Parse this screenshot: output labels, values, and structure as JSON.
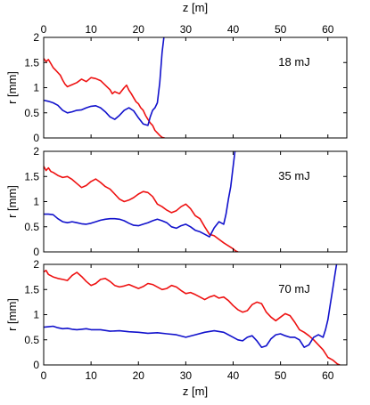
{
  "chart_data": {
    "type": "line",
    "top_xlabel": "z [m]",
    "xlabel": "z [m]",
    "ylabel": "r [mm]",
    "xlim": [
      0,
      64
    ],
    "ylim": [
      0,
      2
    ],
    "xticks": [
      0,
      10,
      20,
      30,
      40,
      50,
      60
    ],
    "yticks": [
      0,
      0.5,
      1,
      1.5,
      2
    ],
    "ytick_labels": [
      "0",
      "0.5",
      "1",
      "1.5",
      "2"
    ],
    "grid": false,
    "colors": {
      "red": "#ee1111",
      "blue": "#1111cc"
    },
    "panels": [
      {
        "label": "18 mJ",
        "series": [
          {
            "color": "red",
            "x": [
              0,
              0.5,
              1,
              1.5,
              2,
              2.5,
              3,
              3.5,
              4,
              4.5,
              5,
              6,
              7,
              8,
              9,
              10,
              11,
              12,
              13,
              14,
              14.5,
              15,
              16,
              17,
              17.5,
              18,
              18.5,
              19,
              19.5,
              20,
              20.5,
              21,
              21.5,
              22,
              22.5,
              23,
              23.5,
              24,
              24.5,
              25,
              25.5
            ],
            "y": [
              1.58,
              1.52,
              1.56,
              1.48,
              1.4,
              1.35,
              1.3,
              1.25,
              1.15,
              1.07,
              1.02,
              1.06,
              1.1,
              1.17,
              1.12,
              1.2,
              1.18,
              1.14,
              1.05,
              0.96,
              0.88,
              0.92,
              0.88,
              1.0,
              1.05,
              0.95,
              0.88,
              0.8,
              0.72,
              0.68,
              0.6,
              0.55,
              0.45,
              0.37,
              0.3,
              0.25,
              0.15,
              0.1,
              0.05,
              0.01,
              0.0
            ]
          },
          {
            "color": "blue",
            "x": [
              0,
              1,
              2,
              3,
              4,
              5,
              6,
              7,
              8,
              9,
              10,
              11,
              12,
              13,
              14,
              15,
              16,
              17,
              18,
              19,
              20,
              21,
              22,
              22.5,
              23,
              23.5,
              24,
              24.5,
              25,
              25.5
            ],
            "y": [
              0.75,
              0.73,
              0.7,
              0.65,
              0.55,
              0.5,
              0.52,
              0.55,
              0.56,
              0.6,
              0.63,
              0.64,
              0.6,
              0.52,
              0.42,
              0.37,
              0.45,
              0.55,
              0.6,
              0.54,
              0.4,
              0.28,
              0.25,
              0.42,
              0.55,
              0.6,
              0.7,
              1.1,
              1.7,
              2.1
            ]
          }
        ]
      },
      {
        "label": "35 mJ",
        "series": [
          {
            "color": "red",
            "x": [
              0,
              0.5,
              1,
              1.5,
              2,
              3,
              4,
              5,
              6,
              7,
              8,
              9,
              10,
              11,
              12,
              13,
              14,
              15,
              16,
              17,
              18,
              19,
              20,
              21,
              22,
              23,
              24,
              25,
              26,
              27,
              28,
              29,
              30,
              31,
              32,
              33,
              34,
              35,
              36,
              37,
              38,
              39,
              40,
              40.5,
              41
            ],
            "y": [
              1.7,
              1.62,
              1.67,
              1.6,
              1.58,
              1.52,
              1.48,
              1.5,
              1.44,
              1.36,
              1.28,
              1.32,
              1.4,
              1.45,
              1.38,
              1.3,
              1.25,
              1.15,
              1.05,
              1.0,
              1.03,
              1.08,
              1.15,
              1.2,
              1.18,
              1.1,
              0.95,
              0.9,
              0.83,
              0.78,
              0.82,
              0.9,
              0.95,
              0.86,
              0.72,
              0.66,
              0.5,
              0.35,
              0.32,
              0.25,
              0.18,
              0.12,
              0.06,
              0.02,
              0.0
            ]
          },
          {
            "color": "blue",
            "x": [
              0,
              1,
              2,
              3,
              4,
              5,
              6,
              7,
              8,
              9,
              10,
              11,
              12,
              13,
              14,
              15,
              16,
              17,
              18,
              19,
              20,
              21,
              22,
              23,
              24,
              25,
              26,
              27,
              28,
              29,
              30,
              31,
              32,
              33,
              34,
              35,
              36,
              37,
              38,
              38.5,
              39,
              39.5,
              40,
              40.5
            ],
            "y": [
              0.75,
              0.75,
              0.74,
              0.66,
              0.6,
              0.58,
              0.6,
              0.58,
              0.56,
              0.55,
              0.57,
              0.6,
              0.63,
              0.65,
              0.66,
              0.66,
              0.65,
              0.62,
              0.57,
              0.53,
              0.52,
              0.55,
              0.58,
              0.62,
              0.65,
              0.62,
              0.58,
              0.5,
              0.47,
              0.52,
              0.55,
              0.5,
              0.43,
              0.4,
              0.35,
              0.3,
              0.48,
              0.6,
              0.55,
              0.75,
              1.05,
              1.3,
              1.7,
              2.1
            ]
          }
        ]
      },
      {
        "label": "70 mJ",
        "series": [
          {
            "color": "red",
            "x": [
              0,
              0.5,
              1,
              2,
              3,
              4,
              5,
              6,
              7,
              8,
              9,
              10,
              11,
              12,
              13,
              14,
              15,
              16,
              17,
              18,
              19,
              20,
              21,
              22,
              23,
              24,
              25,
              26,
              27,
              28,
              29,
              30,
              31,
              32,
              33,
              34,
              35,
              36,
              37,
              38,
              39,
              40,
              41,
              42,
              43,
              44,
              45,
              46,
              47,
              48,
              49,
              50,
              51,
              52,
              53,
              54,
              55,
              56,
              57,
              58,
              59,
              60,
              61,
              62,
              62.5
            ],
            "y": [
              1.85,
              1.88,
              1.8,
              1.75,
              1.72,
              1.7,
              1.68,
              1.78,
              1.84,
              1.76,
              1.66,
              1.58,
              1.62,
              1.7,
              1.72,
              1.66,
              1.58,
              1.55,
              1.57,
              1.6,
              1.56,
              1.52,
              1.56,
              1.62,
              1.6,
              1.55,
              1.5,
              1.52,
              1.58,
              1.55,
              1.48,
              1.42,
              1.44,
              1.4,
              1.35,
              1.3,
              1.35,
              1.38,
              1.33,
              1.35,
              1.28,
              1.18,
              1.1,
              1.05,
              1.08,
              1.2,
              1.25,
              1.22,
              1.05,
              0.95,
              0.88,
              0.95,
              1.02,
              0.98,
              0.85,
              0.7,
              0.65,
              0.58,
              0.5,
              0.4,
              0.3,
              0.15,
              0.1,
              0.02,
              0.0
            ]
          },
          {
            "color": "blue",
            "x": [
              0,
              1,
              2,
              3,
              4,
              5,
              6,
              7,
              8,
              9,
              10,
              12,
              14,
              16,
              18,
              20,
              22,
              24,
              26,
              28,
              30,
              32,
              34,
              36,
              38,
              40,
              41,
              42,
              43,
              44,
              45,
              46,
              47,
              48,
              49,
              50,
              51,
              52,
              53,
              54,
              55,
              56,
              57,
              58,
              59,
              59.5,
              60,
              60.5,
              61,
              61.5,
              62
            ],
            "y": [
              0.75,
              0.76,
              0.77,
              0.74,
              0.72,
              0.73,
              0.71,
              0.7,
              0.71,
              0.72,
              0.7,
              0.7,
              0.67,
              0.68,
              0.66,
              0.65,
              0.63,
              0.64,
              0.62,
              0.6,
              0.55,
              0.6,
              0.65,
              0.68,
              0.65,
              0.55,
              0.5,
              0.48,
              0.55,
              0.58,
              0.48,
              0.35,
              0.38,
              0.52,
              0.6,
              0.62,
              0.58,
              0.55,
              0.55,
              0.5,
              0.35,
              0.4,
              0.55,
              0.6,
              0.55,
              0.7,
              0.9,
              1.2,
              1.5,
              1.8,
              2.1
            ]
          }
        ]
      }
    ]
  }
}
